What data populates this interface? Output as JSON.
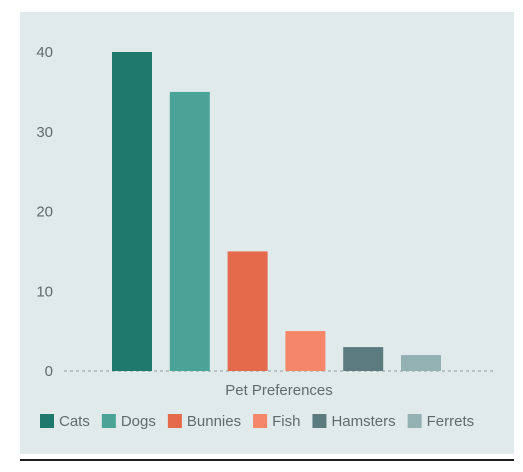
{
  "chart_data": {
    "type": "bar",
    "title": "",
    "xlabel": "Pet Preferences",
    "ylabel": "",
    "categories": [
      "Cats",
      "Dogs",
      "Bunnies",
      "Fish",
      "Hamsters",
      "Ferrets"
    ],
    "values": [
      40,
      35,
      15,
      5,
      3,
      2
    ],
    "colors": [
      "#1f7a6d",
      "#4aa396",
      "#e5694b",
      "#f6866a",
      "#5b7b7e",
      "#93b1b3"
    ],
    "ylim": [
      0,
      40
    ],
    "yticks": [
      0,
      10,
      20,
      30,
      40
    ],
    "grid": false,
    "baseline_style": "dashed",
    "legend_position": "bottom"
  }
}
